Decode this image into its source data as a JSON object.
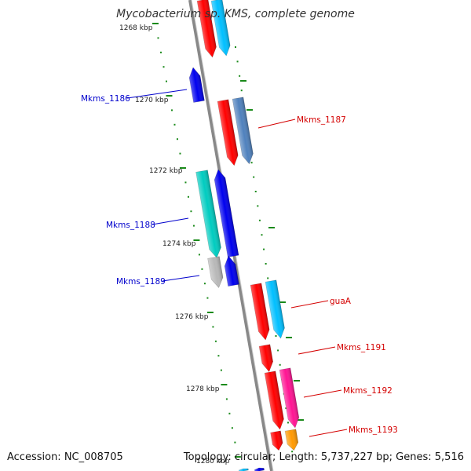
{
  "title": "Mycobacterium sp. KMS, complete genome",
  "accession": "Accession: NC_008705",
  "summary": "Topology: circular; Length: 5,737,227 bp; Genes: 5,516",
  "scale_labels": [
    "1268 kbp",
    "1270 kbp",
    "1272 kbp",
    "1274 kbp",
    "1276 kbp",
    "1278 kbp",
    "1280 kbp"
  ],
  "gene_labels": {
    "mkms_1186": "Mkms_1186",
    "mkms_1187": "Mkms_1187",
    "mkms_1188": "Mkms_1188",
    "mkms_1189": "Mkms_1189",
    "guaA": "guaA",
    "mkms_1191": "Mkms_1191",
    "mkms_1192": "Mkms_1192",
    "mkms_1193": "Mkms_1193"
  },
  "colors": {
    "backbone": "#888888",
    "scale_tick": "#1a8a1a",
    "forward_label": "#d40000",
    "reverse_label": "#0000cc",
    "gene_red": "#ff0000",
    "gene_blue": "#0000ee",
    "gene_skyblue": "#00bfff",
    "gene_steel": "#4f81bd",
    "gene_teal": "#00ccc0",
    "gene_grey": "#b8b8b8",
    "gene_pink": "#ff1493",
    "gene_orange": "#ff9900"
  }
}
